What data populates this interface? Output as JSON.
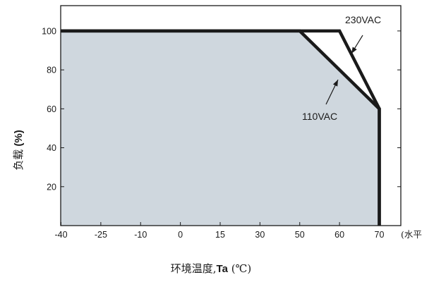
{
  "chart_data": {
    "type": "line",
    "xlabel_cn": "环境温度,",
    "xlabel_bold": "Ta",
    "xlabel_unit": " (℃)",
    "ylabel_cn": "负载",
    "ylabel_bold": " (%)",
    "x_unit_note": "(水平)",
    "x_ticks": [
      "-40",
      "-25",
      "-10",
      "0",
      "15",
      "30",
      "50",
      "60",
      "70"
    ],
    "y_ticks": [
      "20",
      "40",
      "60",
      "80",
      "100"
    ],
    "ylim": [
      0,
      113
    ],
    "grid": false,
    "series": [
      {
        "name": "110VAC",
        "x": [
          "-40",
          "50",
          "70",
          "70"
        ],
        "y": [
          100,
          100,
          60,
          0
        ],
        "fill": "#cfd7de"
      },
      {
        "name": "230VAC",
        "x": [
          "-40",
          "60",
          "70",
          "70"
        ],
        "y": [
          100,
          100,
          60,
          0
        ]
      }
    ],
    "annotations": [
      {
        "text": "230VAC",
        "series": "230VAC"
      },
      {
        "text": "110VAC",
        "series": "110VAC"
      }
    ],
    "colors": {
      "line": "#1a1a1a",
      "fill": "#cfd7de",
      "frame": "#1a1a1a"
    }
  }
}
